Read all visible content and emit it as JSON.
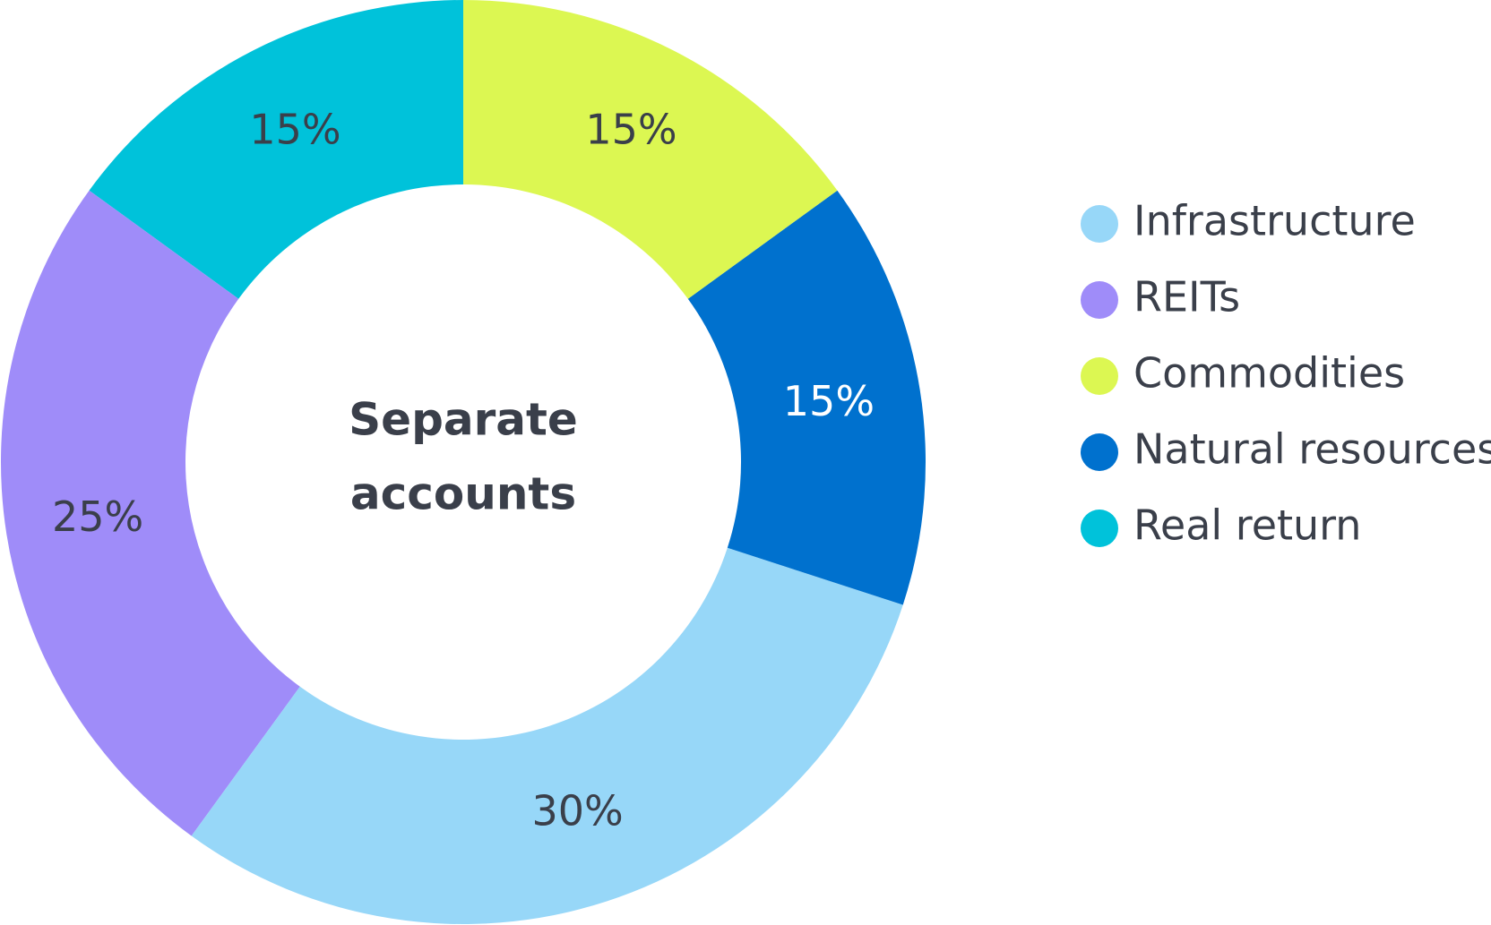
{
  "chart_data": {
    "type": "pie",
    "center_label": [
      "Separate",
      "accounts"
    ],
    "categories": [
      "Commodities",
      "Natural resources",
      "Infrastructure",
      "REITs",
      "Real return"
    ],
    "values": [
      15,
      15,
      30,
      25,
      15
    ],
    "value_labels": [
      "15%",
      "15%",
      "30%",
      "25%",
      "15%"
    ],
    "colors": [
      "#dcf752",
      "#0071ce",
      "#97d7f8",
      "#9f8cf9",
      "#00c2da"
    ],
    "legend": "right"
  }
}
